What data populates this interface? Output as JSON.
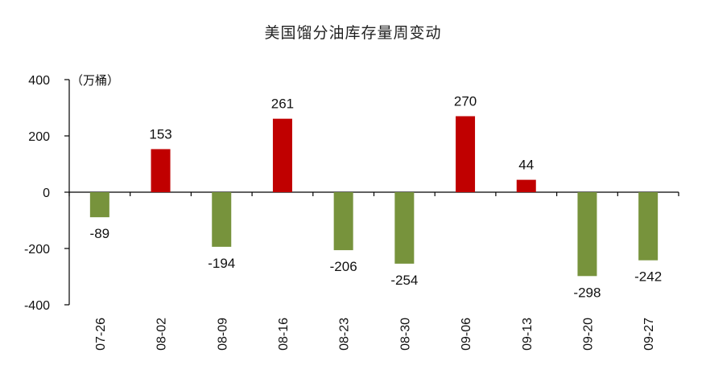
{
  "chart_data": {
    "type": "bar",
    "title": "美国馏分油库存量周变动",
    "unit_label": "（万桶）",
    "categories": [
      "07-26",
      "08-02",
      "08-09",
      "08-16",
      "08-23",
      "08-30",
      "09-06",
      "09-13",
      "09-20",
      "09-27"
    ],
    "values": [
      -89,
      153,
      -194,
      261,
      -206,
      -254,
      270,
      44,
      -298,
      -242
    ],
    "ylim": [
      -400,
      400
    ],
    "yticks": [
      400,
      200,
      0,
      -200,
      -400
    ],
    "grid": false,
    "legend": "none",
    "colors": {
      "positive": "#c00000",
      "negative": "#77933c",
      "axis": "#000000"
    }
  }
}
